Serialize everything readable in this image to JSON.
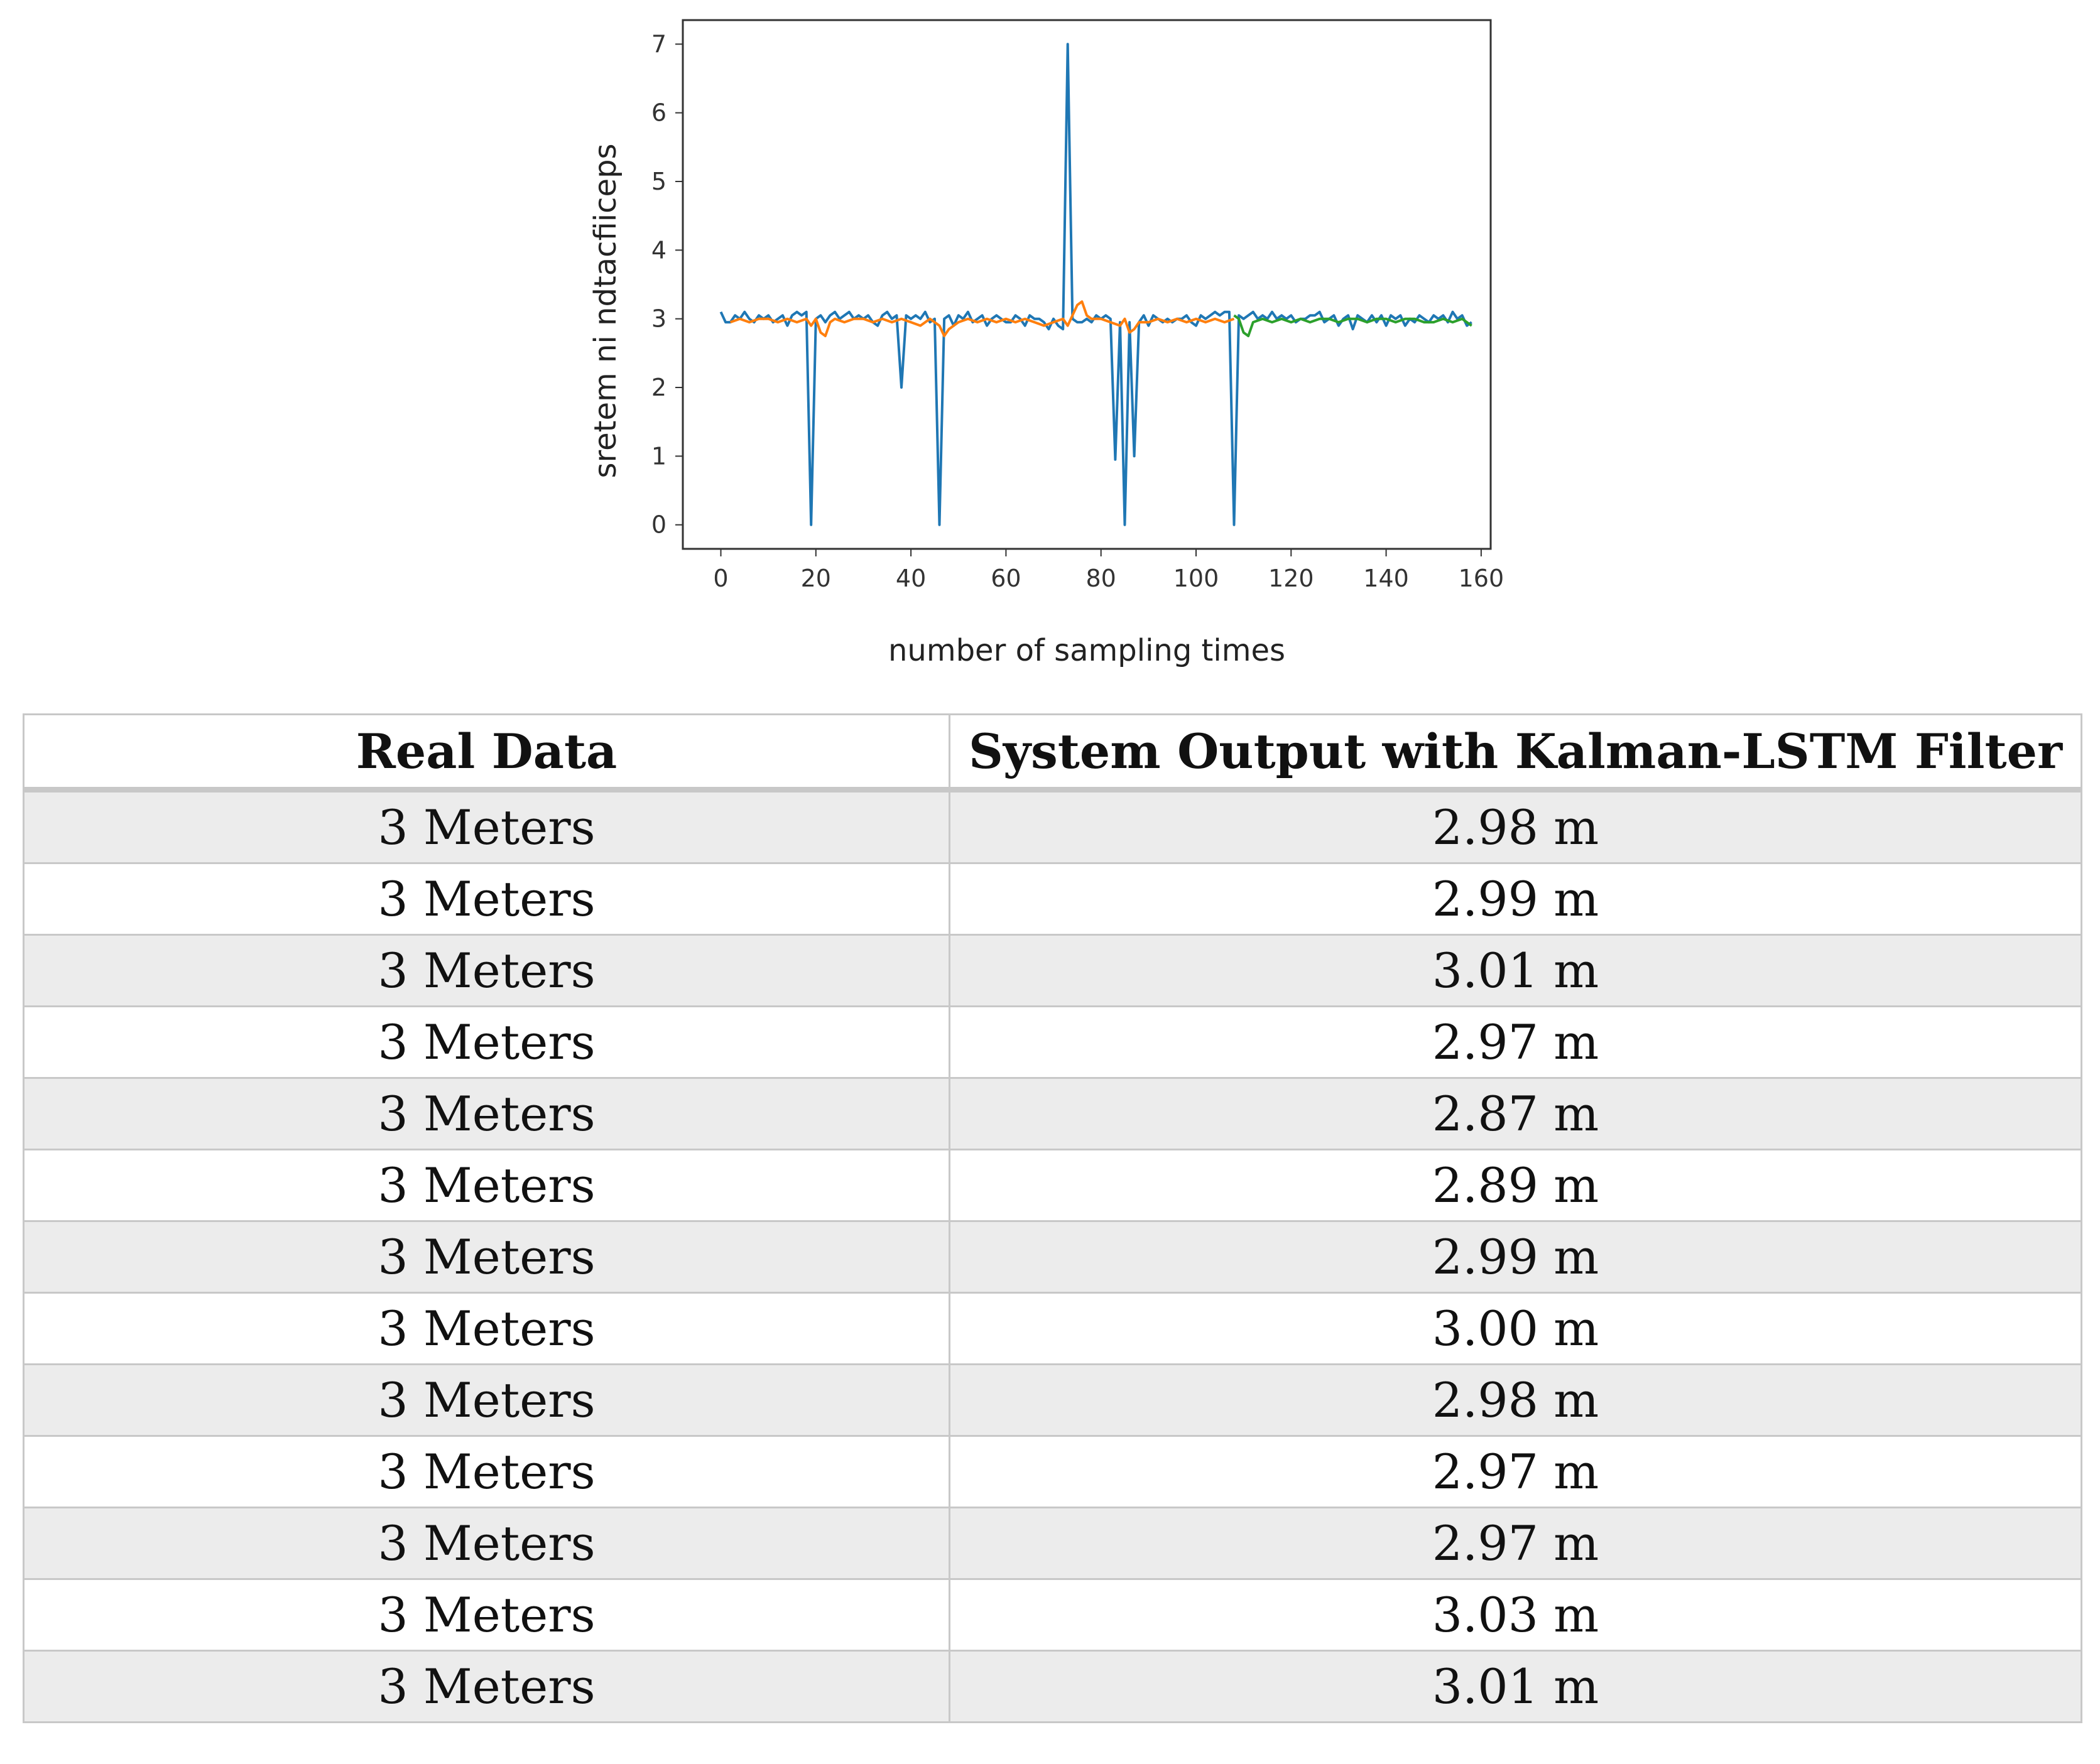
{
  "chart_data": {
    "type": "line",
    "title": "",
    "xlabel": "number of sampling times",
    "ylabel": "sretem ni ndtacfiiceps",
    "xlim": [
      -8,
      162
    ],
    "ylim": [
      -0.35,
      7.35
    ],
    "xticks": [
      0,
      20,
      40,
      60,
      80,
      100,
      120,
      140,
      160
    ],
    "yticks": [
      0,
      1,
      2,
      3,
      4,
      5,
      6,
      7
    ],
    "grid": false,
    "series": [
      {
        "color": "#1f77b4",
        "x": [
          0,
          1,
          2,
          3,
          4,
          5,
          6,
          7,
          8,
          9,
          10,
          11,
          12,
          13,
          14,
          15,
          16,
          17,
          18,
          19,
          20,
          21,
          22,
          23,
          24,
          25,
          26,
          27,
          28,
          29,
          30,
          31,
          32,
          33,
          34,
          35,
          36,
          37,
          38,
          39,
          40,
          41,
          42,
          43,
          44,
          45,
          46,
          47,
          48,
          49,
          50,
          51,
          52,
          53,
          54,
          55,
          56,
          57,
          58,
          59,
          60,
          61,
          62,
          63,
          64,
          65,
          66,
          67,
          68,
          69,
          70,
          71,
          72,
          73,
          74,
          75,
          76,
          77,
          78,
          79,
          80,
          81,
          82,
          83,
          84,
          85,
          86,
          87,
          88,
          89,
          90,
          91,
          92,
          93,
          94,
          95,
          96,
          97,
          98,
          99,
          100,
          101,
          102,
          103,
          104,
          105,
          106,
          107,
          108,
          109,
          110,
          111,
          112,
          113,
          114,
          115,
          116,
          117,
          118,
          119,
          120,
          121,
          122,
          123,
          124,
          125,
          126,
          127,
          128,
          129,
          130,
          131,
          132,
          133,
          134,
          135,
          136,
          137,
          138,
          139,
          140,
          141,
          142,
          143,
          144,
          145,
          146,
          147,
          148,
          149,
          150,
          151,
          152,
          153,
          154,
          155,
          156,
          157,
          158
        ],
        "y": [
          3.1,
          2.95,
          2.95,
          3.05,
          3.0,
          3.1,
          3.0,
          2.95,
          3.05,
          3.0,
          3.05,
          2.95,
          3.0,
          3.05,
          2.9,
          3.05,
          3.1,
          3.05,
          3.1,
          0.0,
          3.0,
          3.05,
          2.95,
          3.05,
          3.1,
          3.0,
          3.05,
          3.1,
          3.0,
          3.05,
          3.0,
          3.05,
          2.95,
          2.9,
          3.05,
          3.1,
          3.0,
          3.05,
          2.0,
          3.05,
          3.0,
          3.05,
          3.0,
          3.1,
          2.95,
          3.0,
          0.0,
          3.0,
          3.05,
          2.9,
          3.05,
          3.0,
          3.1,
          2.95,
          3.0,
          3.05,
          2.9,
          3.0,
          3.05,
          3.0,
          2.95,
          2.95,
          3.05,
          3.0,
          2.9,
          3.05,
          3.0,
          3.0,
          2.95,
          2.85,
          3.0,
          2.9,
          2.85,
          7.0,
          3.0,
          2.95,
          2.95,
          3.0,
          2.95,
          3.05,
          3.0,
          3.05,
          3.0,
          0.95,
          2.95,
          0.0,
          2.95,
          1.0,
          2.95,
          3.05,
          2.9,
          3.05,
          3.0,
          2.95,
          3.0,
          2.95,
          3.0,
          3.0,
          3.05,
          2.95,
          2.9,
          3.05,
          3.0,
          3.05,
          3.1,
          3.05,
          3.1,
          3.1,
          0.0,
          3.05,
          3.0,
          3.05,
          3.1,
          3.0,
          3.05,
          3.0,
          3.1,
          3.0,
          3.05,
          3.0,
          3.05,
          2.95,
          3.0,
          3.0,
          3.05,
          3.05,
          3.1,
          2.95,
          3.0,
          3.05,
          2.9,
          3.0,
          3.05,
          2.85,
          3.05,
          3.0,
          2.95,
          3.05,
          2.95,
          3.05,
          2.9,
          3.05,
          3.0,
          3.05,
          2.9,
          3.0,
          2.95,
          3.05,
          3.0,
          2.95,
          3.05,
          3.0,
          3.05,
          2.95,
          3.1,
          3.0,
          3.05,
          2.9,
          2.95
        ]
      },
      {
        "color": "#ff7f0e",
        "x": [
          2,
          4,
          6,
          8,
          10,
          12,
          14,
          16,
          18,
          19,
          20,
          21,
          22,
          23,
          24,
          26,
          28,
          30,
          32,
          34,
          36,
          38,
          40,
          42,
          44,
          45,
          46,
          47,
          48,
          50,
          52,
          54,
          56,
          58,
          60,
          62,
          64,
          66,
          68,
          70,
          72,
          73,
          74,
          75,
          76,
          77,
          78,
          80,
          82,
          84,
          85,
          86,
          87,
          88,
          90,
          92,
          94,
          96,
          98,
          100,
          102,
          104,
          106,
          108
        ],
        "y": [
          2.95,
          3.0,
          2.95,
          3.0,
          3.0,
          2.95,
          3.0,
          2.95,
          3.0,
          2.9,
          3.0,
          2.8,
          2.75,
          2.95,
          3.0,
          2.95,
          3.0,
          3.0,
          2.95,
          3.0,
          2.95,
          3.0,
          2.95,
          2.9,
          3.0,
          2.95,
          2.9,
          2.75,
          2.85,
          2.95,
          3.0,
          2.95,
          3.0,
          2.95,
          3.0,
          2.95,
          3.0,
          2.95,
          2.9,
          2.95,
          3.0,
          2.9,
          3.05,
          3.2,
          3.25,
          3.05,
          3.0,
          3.0,
          2.95,
          2.9,
          3.0,
          2.8,
          2.85,
          2.95,
          2.95,
          3.0,
          2.95,
          3.0,
          2.95,
          3.0,
          2.95,
          3.0,
          2.95,
          3.0
        ]
      },
      {
        "color": "#2ca02c",
        "x": [
          108,
          109,
          110,
          111,
          112,
          114,
          116,
          118,
          120,
          122,
          124,
          126,
          128,
          130,
          132,
          134,
          136,
          138,
          140,
          142,
          144,
          146,
          148,
          150,
          152,
          154,
          156,
          158
        ],
        "y": [
          3.05,
          3.0,
          2.8,
          2.75,
          2.95,
          3.0,
          2.95,
          3.0,
          2.95,
          3.0,
          2.95,
          3.0,
          3.0,
          2.95,
          3.0,
          3.0,
          2.95,
          3.0,
          3.0,
          2.95,
          3.0,
          3.0,
          2.95,
          2.95,
          3.0,
          2.95,
          3.0,
          2.9
        ]
      }
    ]
  },
  "table": {
    "headers": [
      "Real Data",
      "System Output with Kalman-LSTM Filter"
    ],
    "rows": [
      [
        "3 Meters",
        "2.98 m"
      ],
      [
        "3 Meters",
        "2.99 m"
      ],
      [
        "3 Meters",
        "3.01 m"
      ],
      [
        "3 Meters",
        "2.97 m"
      ],
      [
        "3 Meters",
        "2.87 m"
      ],
      [
        "3 Meters",
        "2.89 m"
      ],
      [
        "3 Meters",
        "2.99 m"
      ],
      [
        "3 Meters",
        "3.00 m"
      ],
      [
        "3 Meters",
        "2.98 m"
      ],
      [
        "3 Meters",
        "2.97 m"
      ],
      [
        "3 Meters",
        "2.97 m"
      ],
      [
        "3 Meters",
        "3.03 m"
      ],
      [
        "3 Meters",
        "3.01 m"
      ]
    ]
  }
}
